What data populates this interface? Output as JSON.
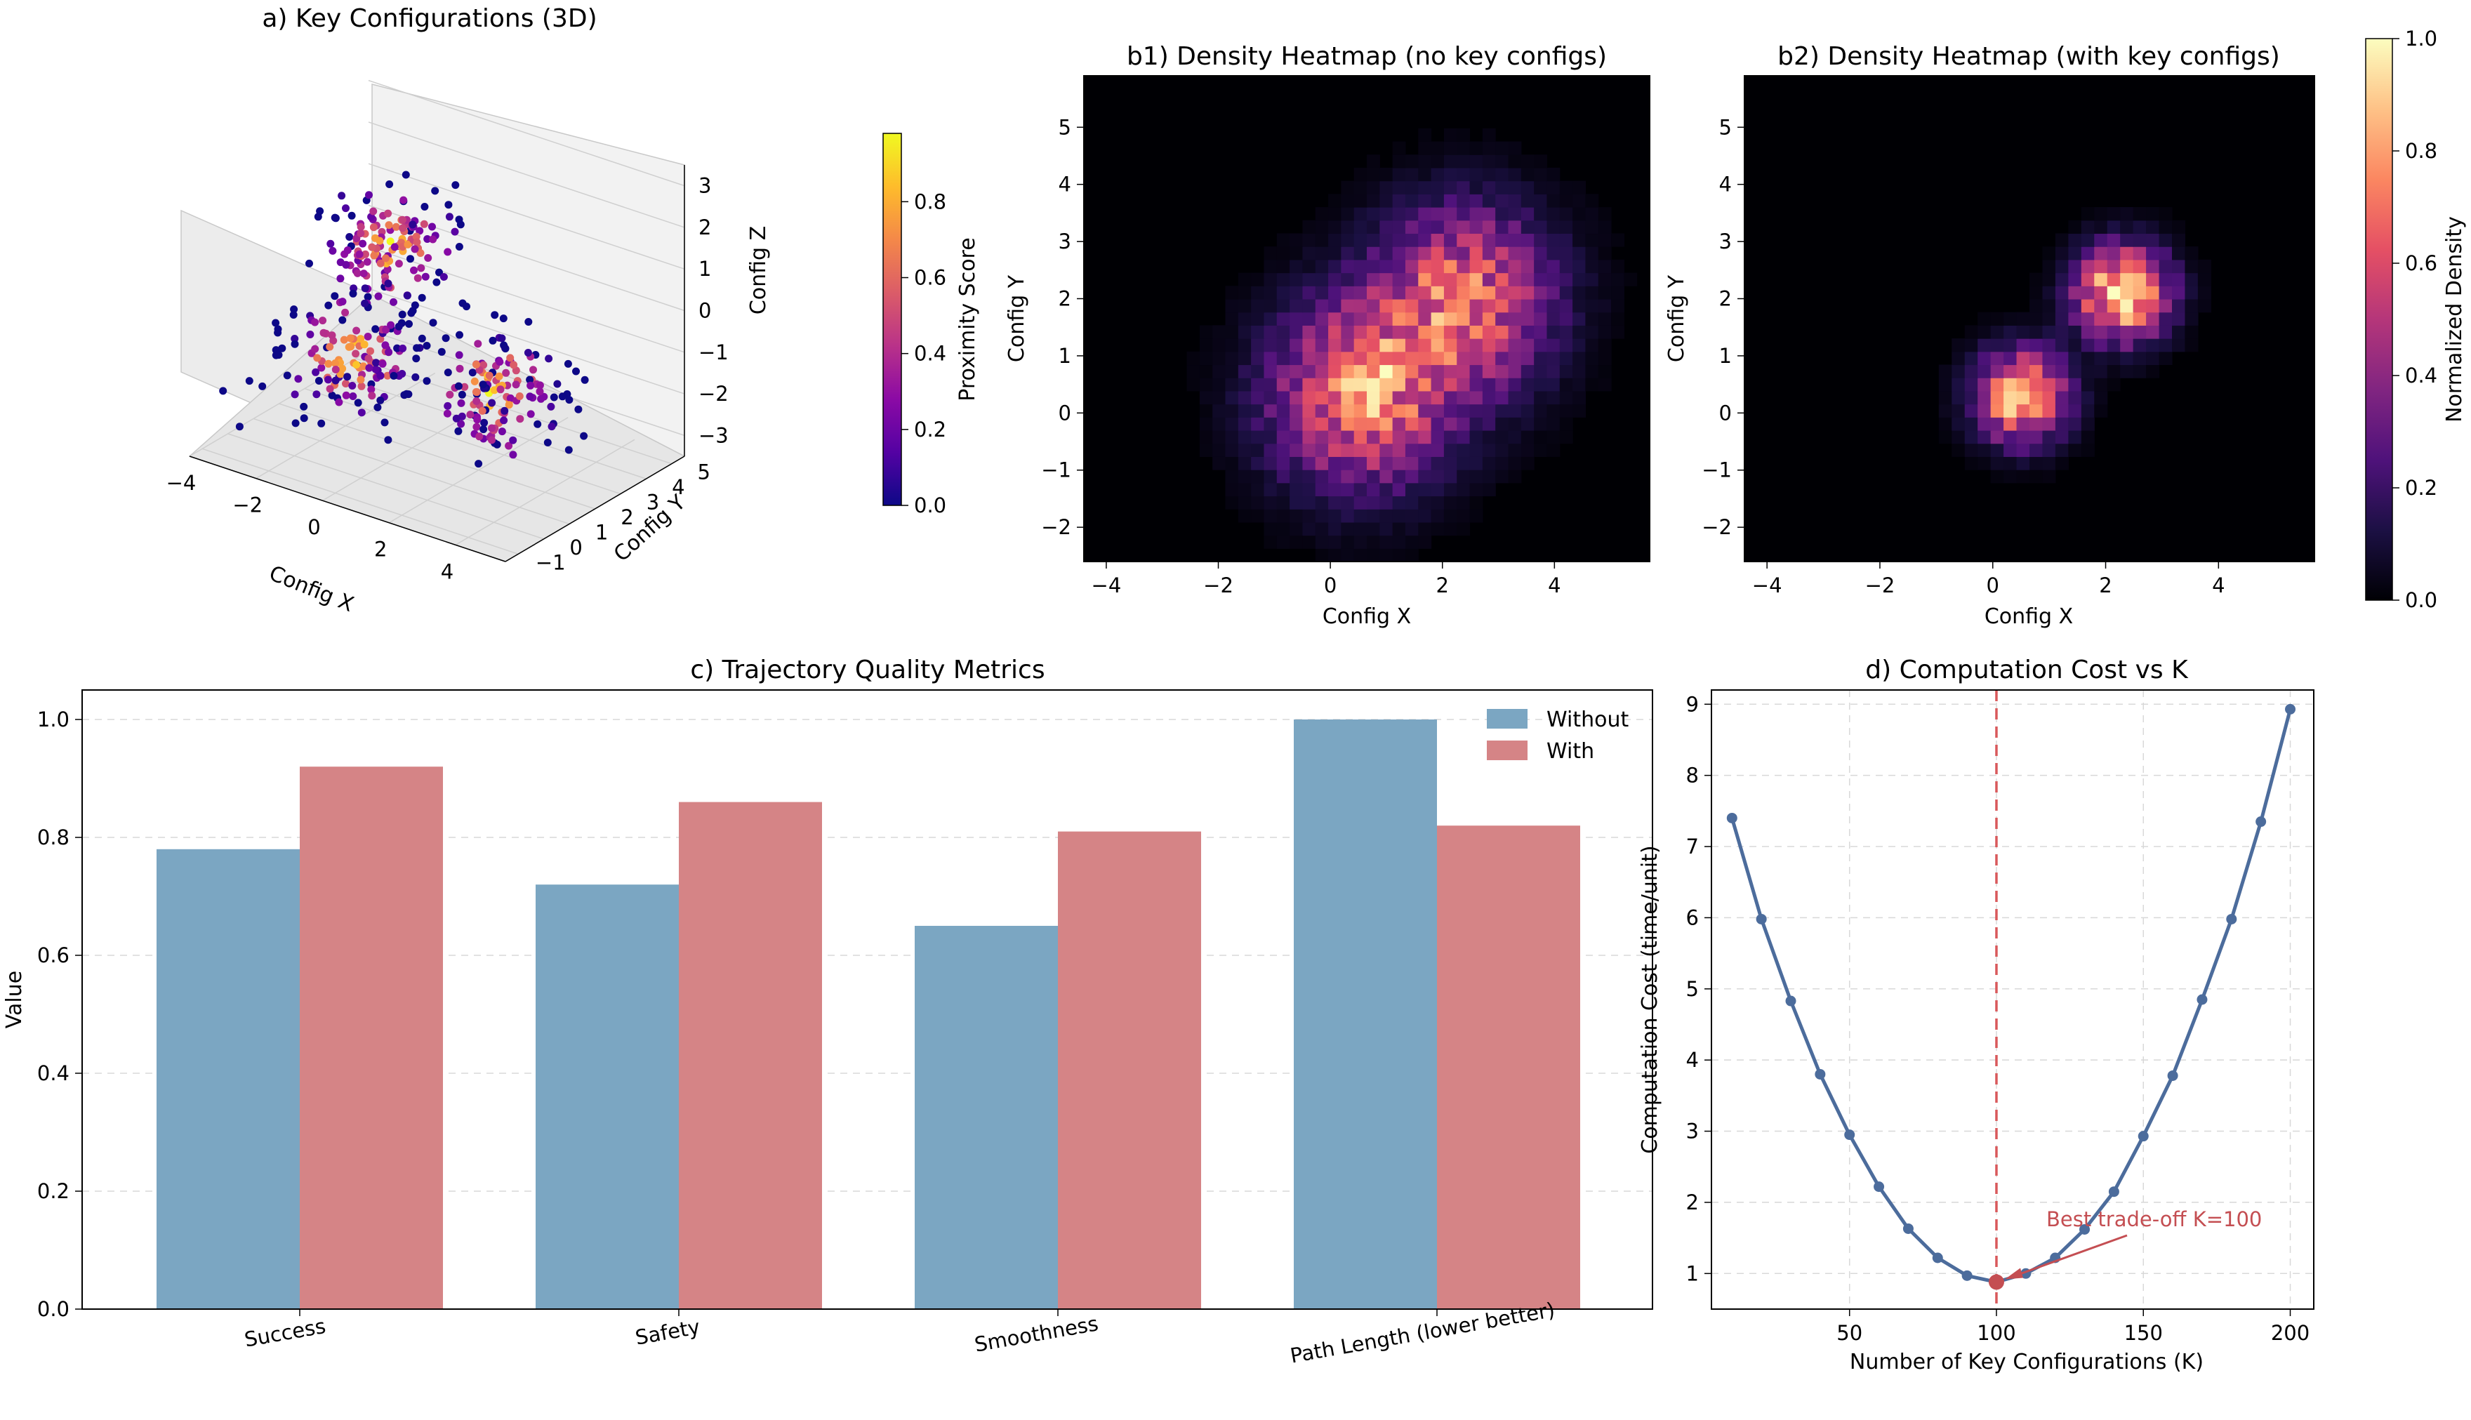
{
  "chart_data": [
    {
      "id": "a",
      "type": "scatter",
      "title": "a) Key Configurations (3D)",
      "xlabel": "Config X",
      "ylabel": "Config Y",
      "zlabel": "Config Z",
      "x_ticks": [
        "−4",
        "−2",
        "0",
        "2",
        "4"
      ],
      "y_ticks": [
        "−1",
        "0",
        "1",
        "2",
        "3",
        "4",
        "5"
      ],
      "z_ticks": [
        "−3",
        "−2",
        "−1",
        "0",
        "1",
        "2",
        "3"
      ],
      "xlim": [
        -4,
        5.5
      ],
      "ylim": [
        -1.5,
        5.5
      ],
      "zlim": [
        -3.5,
        3.5
      ],
      "colormap": "plasma",
      "clusters": [
        {
          "center": [
            0.5,
            0.5,
            2.0
          ],
          "spread": 0.8
        },
        {
          "center": [
            -1.5,
            1.5,
            -1.5
          ],
          "spread": 0.9
        },
        {
          "center": [
            2.5,
            2.0,
            -1.5
          ],
          "spread": 0.9
        }
      ],
      "colorbar": {
        "label": "Proximity Score",
        "ticks": [
          "0.0",
          "0.2",
          "0.4",
          "0.6",
          "0.8"
        ],
        "range": [
          0,
          0.98
        ]
      }
    },
    {
      "id": "b1",
      "type": "heatmap",
      "title": "b1) Density Heatmap (no key configs)",
      "xlabel": "Config X",
      "ylabel": "Config Y",
      "x_ticks": [
        "−4",
        "−2",
        "0",
        "2",
        "4"
      ],
      "y_ticks": [
        "−2",
        "−1",
        "0",
        "1",
        "2",
        "3",
        "4",
        "5"
      ],
      "xlim": [
        -4.4,
        5.7
      ],
      "ylim": [
        -2.6,
        5.9
      ],
      "colormap": "magma",
      "blobs": [
        {
          "center": [
            0.5,
            0.3
          ],
          "sigma": 1.1,
          "weight": 1.0
        },
        {
          "center": [
            2.4,
            2.0
          ],
          "sigma": 1.1,
          "weight": 0.9
        }
      ]
    },
    {
      "id": "b2",
      "type": "heatmap",
      "title": "b2) Density Heatmap (with key configs)",
      "xlabel": "Config X",
      "ylabel": "Config Y",
      "x_ticks": [
        "−4",
        "−2",
        "0",
        "2",
        "4"
      ],
      "y_ticks": [
        "−2",
        "−1",
        "0",
        "1",
        "2",
        "3",
        "4",
        "5"
      ],
      "xlim": [
        -4.4,
        5.7
      ],
      "ylim": [
        -2.6,
        5.9
      ],
      "colormap": "magma",
      "blobs": [
        {
          "center": [
            0.5,
            0.3
          ],
          "sigma": 0.55,
          "weight": 0.85
        },
        {
          "center": [
            2.3,
            2.1
          ],
          "sigma": 0.55,
          "weight": 1.0
        }
      ],
      "colorbar": {
        "label": "Normalized Density",
        "ticks": [
          "0.0",
          "0.2",
          "0.4",
          "0.6",
          "0.8",
          "1.0"
        ],
        "range": [
          0,
          1
        ]
      }
    },
    {
      "id": "c",
      "type": "bar",
      "title": "c) Trajectory Quality Metrics",
      "xlabel": "",
      "ylabel": "Value",
      "categories": [
        "Success",
        "Safety",
        "Smoothness",
        "Path Length (lower better)"
      ],
      "series": [
        {
          "name": "Without",
          "values": [
            0.78,
            0.72,
            0.65,
            1.0
          ],
          "color": "#7ba6c2"
        },
        {
          "name": "With",
          "values": [
            0.92,
            0.86,
            0.81,
            0.82
          ],
          "color": "#d58486"
        }
      ],
      "ylim": [
        0,
        1.05
      ],
      "y_ticks": [
        "0.0",
        "0.2",
        "0.4",
        "0.6",
        "0.8",
        "1.0"
      ],
      "grid": "y-dashed",
      "legend": "top-right"
    },
    {
      "id": "d",
      "type": "line",
      "title": "d) Computation Cost vs K",
      "xlabel": "Number of Key Configurations (K)",
      "ylabel": "Computation Cost (time/unit)",
      "x": [
        10,
        20,
        30,
        40,
        50,
        60,
        70,
        80,
        90,
        100,
        110,
        120,
        130,
        140,
        150,
        160,
        170,
        180,
        190,
        200
      ],
      "values": [
        7.4,
        5.98,
        4.83,
        3.8,
        2.95,
        2.22,
        1.63,
        1.22,
        0.97,
        0.88,
        1.0,
        1.22,
        1.62,
        2.15,
        2.93,
        3.78,
        4.85,
        5.98,
        7.35,
        8.93
      ],
      "xlim": [
        3,
        208
      ],
      "ylim": [
        0.5,
        9.2
      ],
      "x_ticks": [
        "50",
        "100",
        "150",
        "200"
      ],
      "y_ticks": [
        "1",
        "2",
        "3",
        "4",
        "5",
        "6",
        "7",
        "8",
        "9"
      ],
      "color": "#4c6c9c",
      "grid": "dashed",
      "vline": {
        "x": 100,
        "color": "#d9595b"
      },
      "highlight": {
        "x": 100,
        "y": 0.88,
        "color": "#c44e52"
      },
      "annotation": {
        "text": "Best trade-off K=100",
        "x": 100,
        "y": 0.88
      }
    }
  ]
}
